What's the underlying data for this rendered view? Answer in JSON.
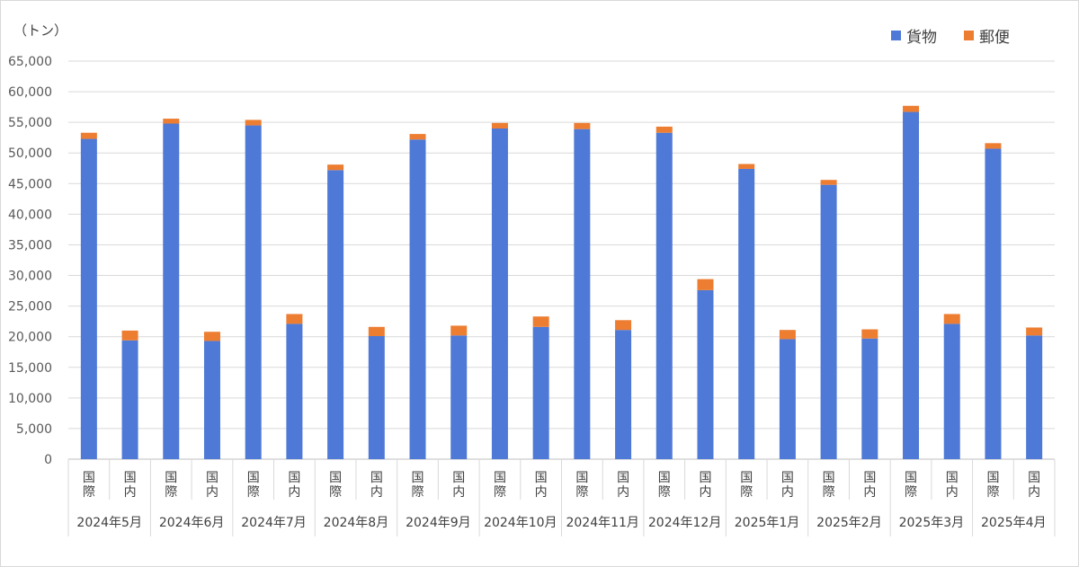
{
  "chart_data": {
    "type": "bar",
    "stacked": true,
    "unit_label": "（トン）",
    "ylim": [
      0,
      65000
    ],
    "yticks": [
      0,
      5000,
      10000,
      15000,
      20000,
      25000,
      30000,
      35000,
      40000,
      45000,
      50000,
      55000,
      60000,
      65000
    ],
    "ytick_labels": [
      "0",
      "5,000",
      "10,000",
      "15,000",
      "20,000",
      "25,000",
      "30,000",
      "35,000",
      "40,000",
      "45,000",
      "50,000",
      "55,000",
      "60,000",
      "65,000"
    ],
    "grid": true,
    "legend_position": "top-right",
    "months": [
      "2024年5月",
      "2024年6月",
      "2024年7月",
      "2024年8月",
      "2024年9月",
      "2024年10月",
      "2024年11月",
      "2024年12月",
      "2025年1月",
      "2025年2月",
      "2025年3月",
      "2025年4月"
    ],
    "subcategories": [
      "国際",
      "国内"
    ],
    "series": [
      {
        "name": "貨物",
        "color": "#4e79d6",
        "values": [
          52300,
          19400,
          54800,
          19300,
          54500,
          22100,
          47200,
          20100,
          52200,
          20200,
          54000,
          21600,
          53900,
          21100,
          53300,
          27600,
          47400,
          19600,
          44800,
          19700,
          56700,
          22100,
          50700,
          20200
        ]
      },
      {
        "name": "郵便",
        "color": "#ed7d31",
        "values": [
          1000,
          1600,
          800,
          1500,
          900,
          1600,
          900,
          1500,
          900,
          1600,
          900,
          1700,
          1000,
          1600,
          1000,
          1800,
          800,
          1500,
          800,
          1500,
          1000,
          1600,
          900,
          1300
        ]
      }
    ]
  }
}
